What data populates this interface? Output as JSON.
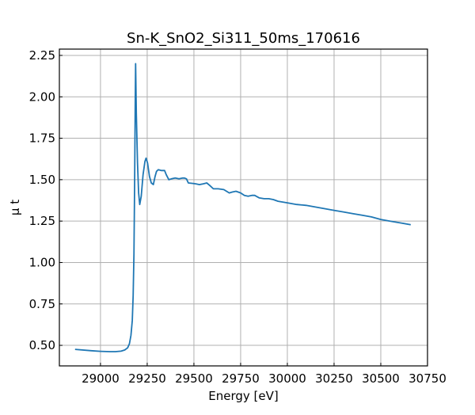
{
  "chart_data": {
    "type": "line",
    "title": "Sn-K_SnO2_Si311_50ms_170616",
    "xlabel": "Energy [eV]",
    "ylabel": "μ t",
    "xlim": [
      28780,
      30750
    ],
    "ylim": [
      0.376,
      2.288
    ],
    "xticks": [
      29000,
      29250,
      29500,
      29750,
      30000,
      30250,
      30500,
      30750
    ],
    "yticks": [
      0.5,
      0.75,
      1.0,
      1.25,
      1.5,
      1.75,
      2.0,
      2.25
    ],
    "xtick_labels": [
      "29000",
      "29250",
      "29500",
      "29750",
      "30000",
      "30250",
      "30500",
      "30750"
    ],
    "ytick_labels": [
      "0.50",
      "0.75",
      "1.00",
      "1.25",
      "1.50",
      "1.75",
      "2.00",
      "2.25"
    ],
    "grid": true,
    "color": "#1f77b4",
    "series": [
      {
        "name": "Sn-K",
        "x": [
          28864,
          28950,
          29000,
          29050,
          29080,
          29110,
          29130,
          29145,
          29155,
          29163,
          29170,
          29175,
          29179,
          29183,
          29186,
          29188,
          29192,
          29198,
          29204,
          29210,
          29218,
          29228,
          29238,
          29244,
          29252,
          29262,
          29272,
          29283,
          29292,
          29300,
          29309,
          29325,
          29343,
          29352,
          29366,
          29380,
          29400,
          29420,
          29440,
          29450,
          29460,
          29470,
          29490,
          29510,
          29530,
          29550,
          29569,
          29585,
          29604,
          29630,
          29660,
          29689,
          29705,
          29725,
          29750,
          29770,
          29790,
          29810,
          29825,
          29850,
          29875,
          29900,
          29925,
          29950,
          29975,
          30000,
          30050,
          30100,
          30150,
          30200,
          30250,
          30300,
          30350,
          30400,
          30450,
          30500,
          30550,
          30600,
          30660
        ],
        "y": [
          0.476,
          0.468,
          0.464,
          0.462,
          0.462,
          0.465,
          0.472,
          0.485,
          0.51,
          0.56,
          0.65,
          0.8,
          1.05,
          1.5,
          1.95,
          2.2,
          1.9,
          1.6,
          1.42,
          1.35,
          1.4,
          1.53,
          1.61,
          1.63,
          1.6,
          1.52,
          1.48,
          1.47,
          1.52,
          1.55,
          1.56,
          1.555,
          1.555,
          1.53,
          1.5,
          1.505,
          1.51,
          1.505,
          1.51,
          1.51,
          1.505,
          1.48,
          1.478,
          1.475,
          1.47,
          1.475,
          1.48,
          1.465,
          1.445,
          1.445,
          1.44,
          1.42,
          1.425,
          1.43,
          1.42,
          1.405,
          1.4,
          1.405,
          1.405,
          1.39,
          1.385,
          1.385,
          1.38,
          1.37,
          1.365,
          1.36,
          1.35,
          1.345,
          1.335,
          1.325,
          1.315,
          1.305,
          1.295,
          1.285,
          1.275,
          1.26,
          1.25,
          1.24,
          1.228
        ]
      }
    ]
  }
}
